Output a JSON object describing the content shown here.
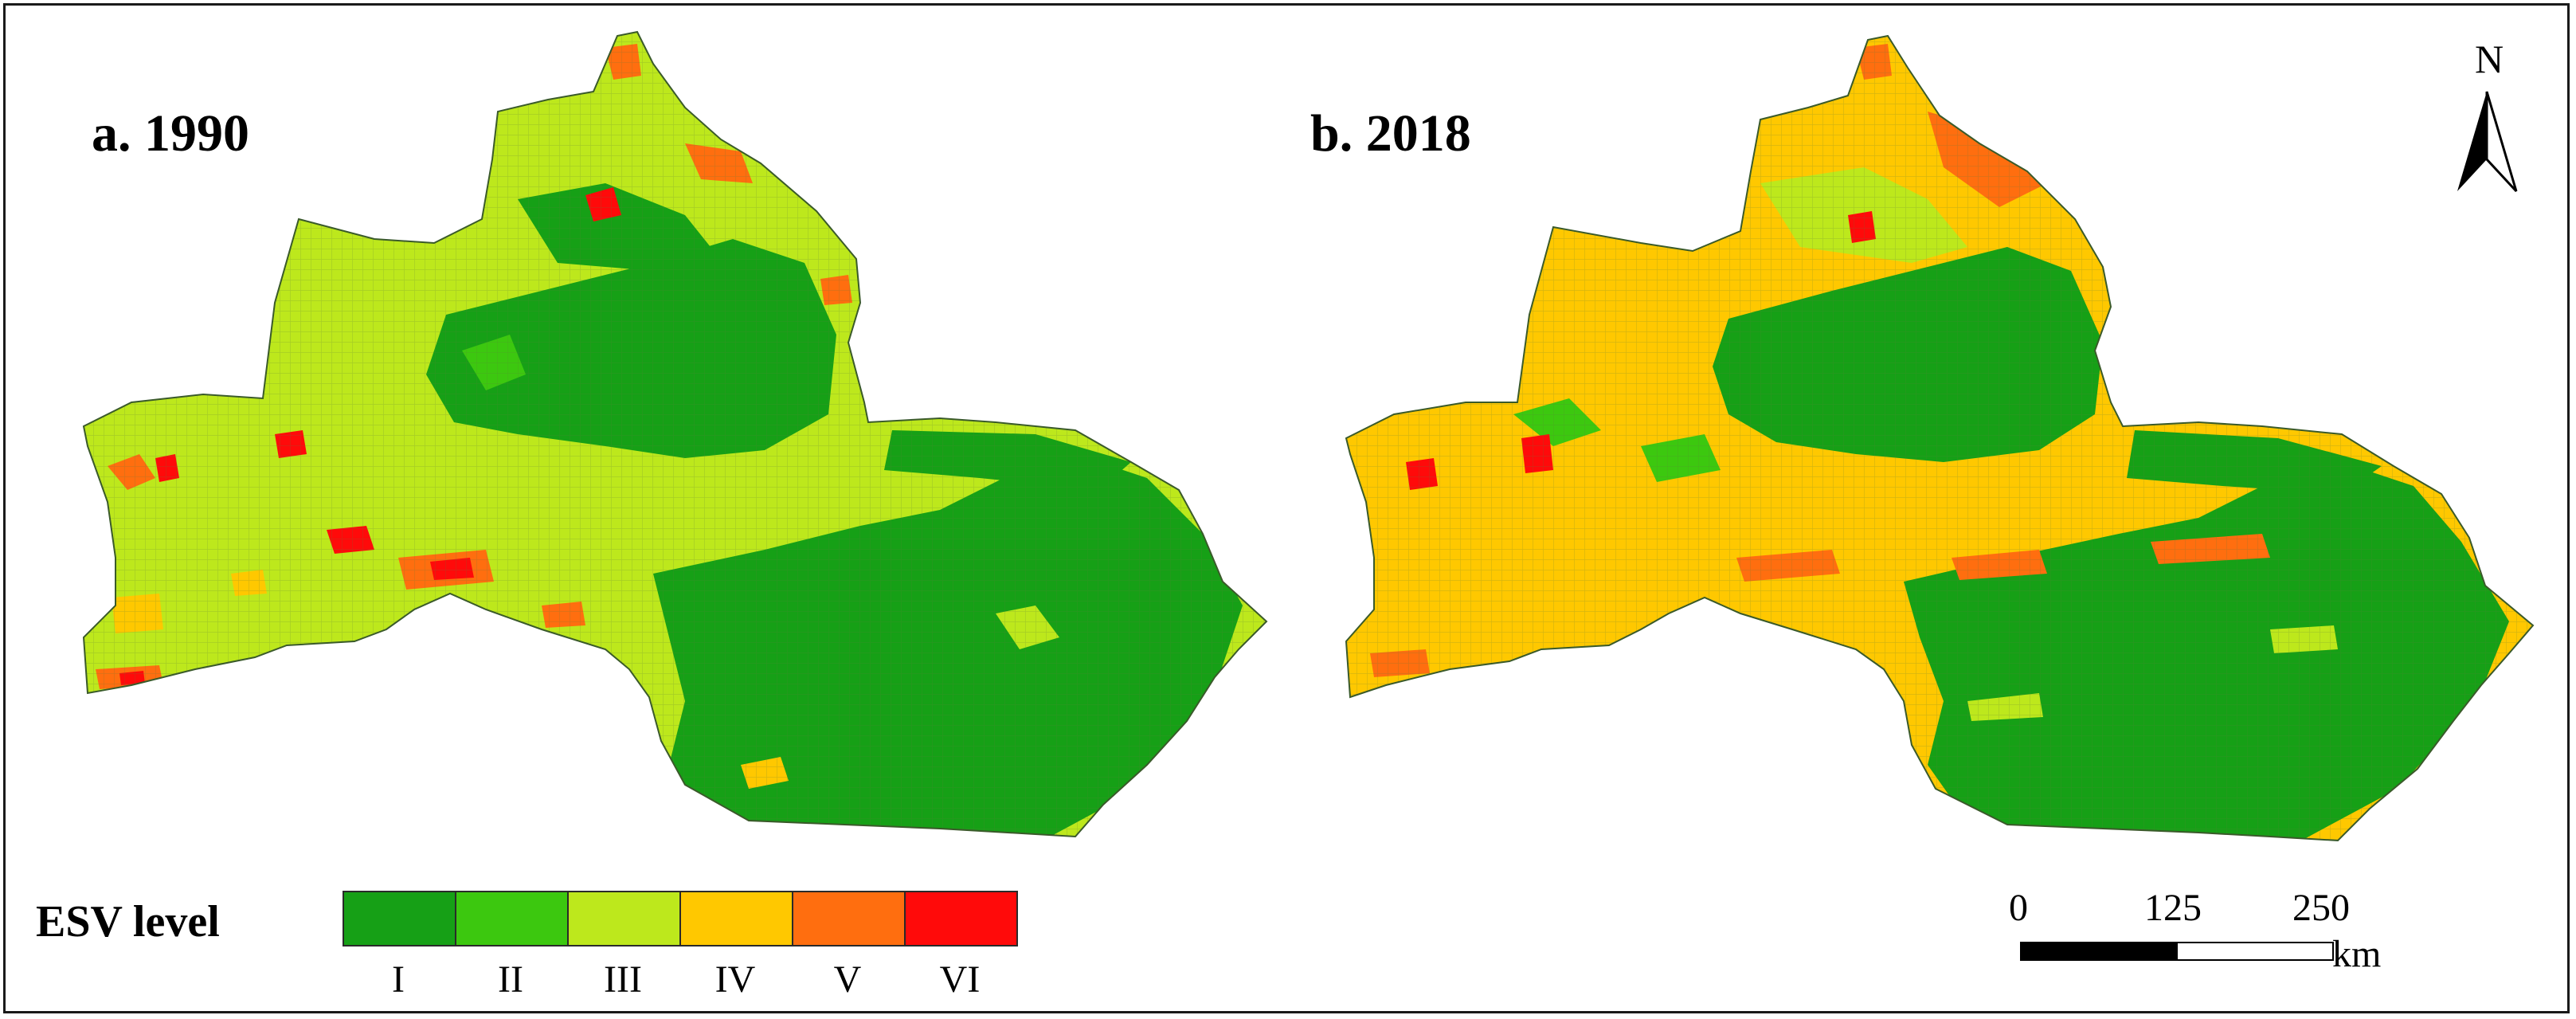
{
  "panels": [
    {
      "label": "a. 1990"
    },
    {
      "label": "b. 2018"
    }
  ],
  "legend": {
    "title": "ESV level",
    "classes": [
      {
        "label": "I",
        "color": "#16a016"
      },
      {
        "label": "II",
        "color": "#3cc80f"
      },
      {
        "label": "III",
        "color": "#bde81c"
      },
      {
        "label": "IV",
        "color": "#ffc800"
      },
      {
        "label": "V",
        "color": "#ff6e0f"
      },
      {
        "label": "VI",
        "color": "#ff0a0a"
      }
    ]
  },
  "north_arrow": {
    "label": "N"
  },
  "scale_bar": {
    "ticks": [
      "0",
      "125",
      "250"
    ],
    "unit": "km"
  }
}
